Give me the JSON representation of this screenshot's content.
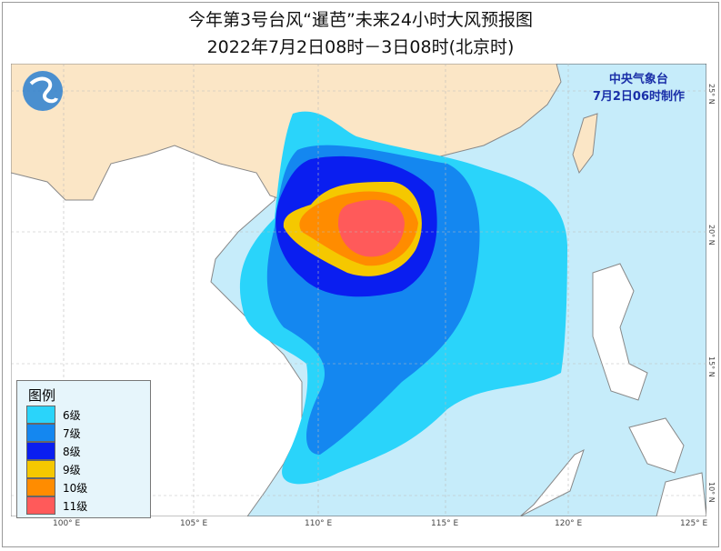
{
  "title": "今年第3号台风“暹芭”未来24小时大风预报图",
  "subtitle": "2022年7月2日08时－3日08时(北京时)",
  "agency": {
    "name": "中央气象台",
    "issued": "7月2日06时制作"
  },
  "legend": {
    "title": "图例",
    "items": [
      {
        "label": "6级",
        "color": "#2ad4fa"
      },
      {
        "label": "7级",
        "color": "#1487f0"
      },
      {
        "label": "8级",
        "color": "#0a1ef0"
      },
      {
        "label": "9级",
        "color": "#f5c800"
      },
      {
        "label": "10级",
        "color": "#ff8c00"
      },
      {
        "label": "11级",
        "color": "#ff5a5a"
      }
    ]
  },
  "axes": {
    "longitude": [
      "100° E",
      "105° E",
      "110° E",
      "115° E",
      "120° E",
      "125° E"
    ],
    "latitude": [
      "25° N",
      "20° N",
      "15° N",
      "10° N"
    ]
  },
  "colors": {
    "sea": "#c6ecfa",
    "china_land": "#fbe6c6",
    "other_land": "#ffffff"
  }
}
